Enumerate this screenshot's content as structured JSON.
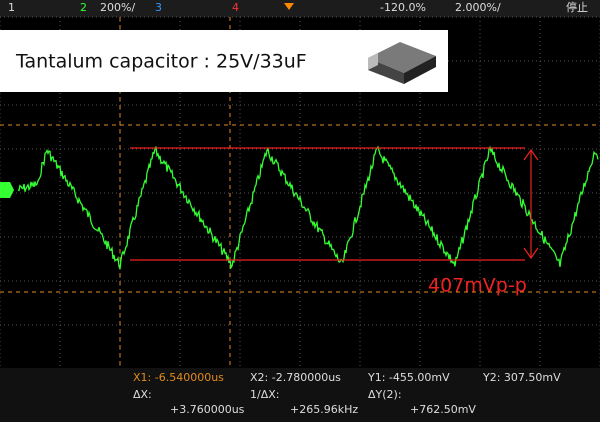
{
  "status_bar": {
    "ch1": "1",
    "ch2": "2",
    "scale": "200%/",
    "ch3": "3",
    "ch4": "4",
    "delay": "-120.0%",
    "timebase": "2.000%/",
    "state": "停止"
  },
  "label": "Tantalum capacitor : 25V/33uF",
  "annotation": "407mVp-p",
  "measurements": {
    "x1": "X1: -6.540000us",
    "x2": "X2: -2.780000us",
    "y1": "Y1: -455.00mV",
    "y2": "Y2: 307.50mV",
    "dx_label": "ΔX:",
    "dx": "+3.760000us",
    "inv_dx_label": "1/ΔX:",
    "inv_dx": "+265.96kHz",
    "dy_label": "ΔY(2):",
    "dy": "+762.50mV"
  }
}
